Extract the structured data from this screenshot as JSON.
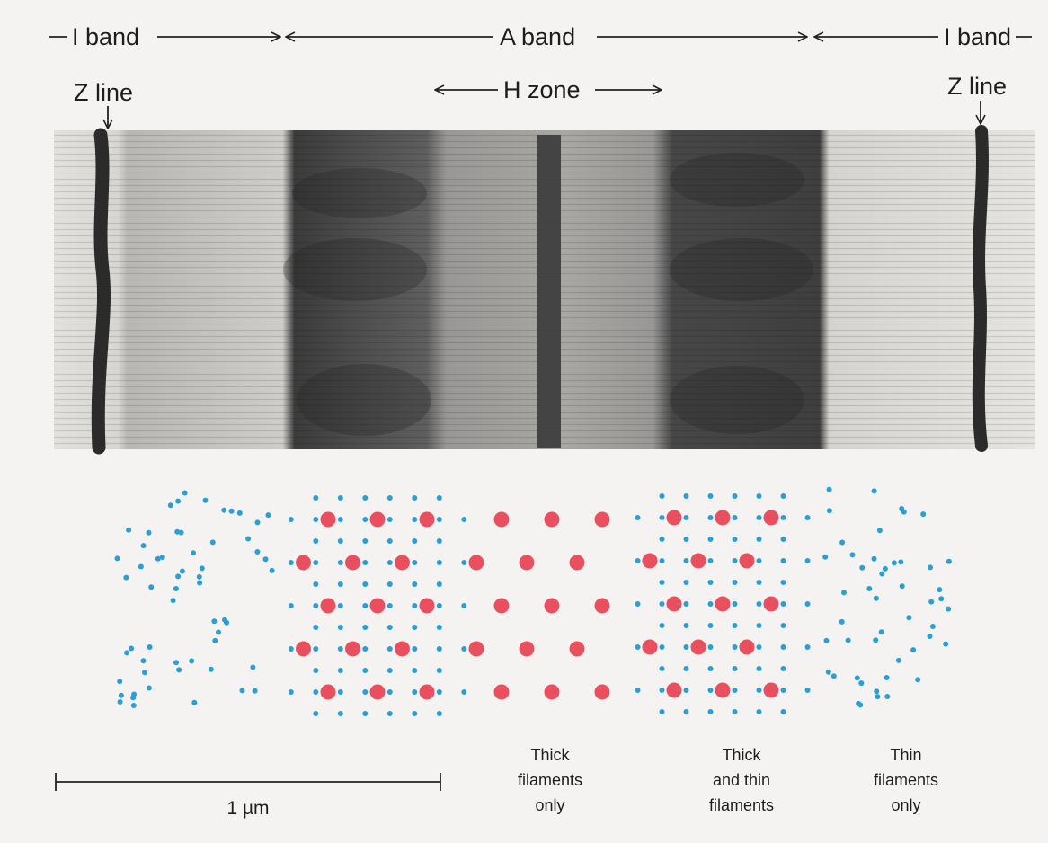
{
  "labels": {
    "i_band_left": "I band",
    "a_band": "A band",
    "i_band_right": "I band",
    "h_zone": "H zone",
    "z_line_left": "Z line",
    "z_line_right": "Z line"
  },
  "scale_bar": {
    "label": "1 µm"
  },
  "captions": {
    "thick_only": [
      "Thick",
      "filaments",
      "only"
    ],
    "thick_and_thin": [
      "Thick",
      "and thin",
      "filaments"
    ],
    "thin_only": [
      "Thin",
      "filaments",
      "only"
    ]
  },
  "micrograph": {
    "description_type": "electron-micrograph-sarcomere"
  },
  "colors": {
    "thick_filament": "#e8505f",
    "thin_filament": "#2a9fd6",
    "micrograph_light": "#d9d7d3",
    "micrograph_dark": "#2a2a2a",
    "background": "#f4f3f1"
  },
  "legend": {
    "thick_filament_mark": "thick-filament-dot",
    "thin_filament_mark": "thin-filament-dot"
  }
}
